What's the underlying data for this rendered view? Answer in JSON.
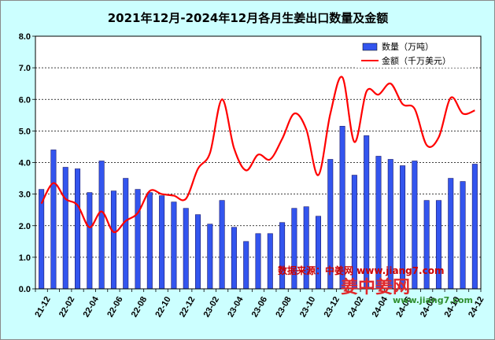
{
  "chart_data": {
    "type": "bar",
    "title": "2021年12月-2024年12月各月生姜出口数量及金额",
    "ylim": [
      0,
      8
    ],
    "yticks": [
      "0.0",
      "1.0",
      "2.0",
      "3.0",
      "4.0",
      "5.0",
      "6.0",
      "7.0",
      "8.0"
    ],
    "grid": true,
    "legend_position": "top-right",
    "categories": [
      "21-12",
      "22-01",
      "22-02",
      "22-03",
      "22-04",
      "22-05",
      "22-06",
      "22-07",
      "22-08",
      "22-09",
      "22-10",
      "22-11",
      "22-12",
      "23-01",
      "23-02",
      "23-03",
      "23-04",
      "23-05",
      "23-06",
      "23-07",
      "23-08",
      "23-09",
      "23-10",
      "23-11",
      "23-12",
      "24-01",
      "24-02",
      "24-03",
      "24-04",
      "24-05",
      "24-06",
      "24-07",
      "24-08",
      "24-09",
      "24-10",
      "24-11",
      "24-12"
    ],
    "x_tick_labels": [
      "21-12",
      "22-02",
      "22-04",
      "22-06",
      "22-08",
      "22-10",
      "22-12",
      "23-02",
      "23-04",
      "23-06",
      "23-08",
      "23-10",
      "23-12",
      "24-02",
      "24-04",
      "24-06",
      "24-08",
      "24-10",
      "24-12"
    ],
    "series": [
      {
        "name": "数量（万吨）",
        "type": "bar",
        "color": "#3355ee",
        "values": [
          3.15,
          4.4,
          3.85,
          3.8,
          3.05,
          4.05,
          3.1,
          3.5,
          3.15,
          3.05,
          2.95,
          2.75,
          2.55,
          2.35,
          2.05,
          2.8,
          1.95,
          1.5,
          1.75,
          1.75,
          2.1,
          2.55,
          2.6,
          2.3,
          4.1,
          5.15,
          3.6,
          4.85,
          4.2,
          4.1,
          3.9,
          4.05,
          2.8,
          2.8,
          3.5,
          3.4,
          3.95
        ]
      },
      {
        "name": "金额（千万美元）",
        "type": "line",
        "color": "#ff0000",
        "values": [
          2.7,
          3.35,
          2.85,
          2.65,
          1.95,
          2.45,
          1.8,
          2.15,
          2.4,
          3.1,
          3.0,
          2.95,
          2.85,
          3.8,
          4.3,
          6.0,
          4.45,
          3.75,
          4.25,
          4.1,
          4.75,
          5.55,
          5.05,
          3.6,
          5.55,
          6.7,
          4.65,
          6.25,
          6.15,
          6.5,
          5.85,
          5.7,
          4.55,
          4.8,
          6.05,
          5.55,
          5.65
        ]
      }
    ]
  },
  "source_text": "数据来源：中姜网 www.jiang7.com",
  "watermark": {
    "text": "姜中姜网",
    "url": "www.jiang7.com"
  }
}
